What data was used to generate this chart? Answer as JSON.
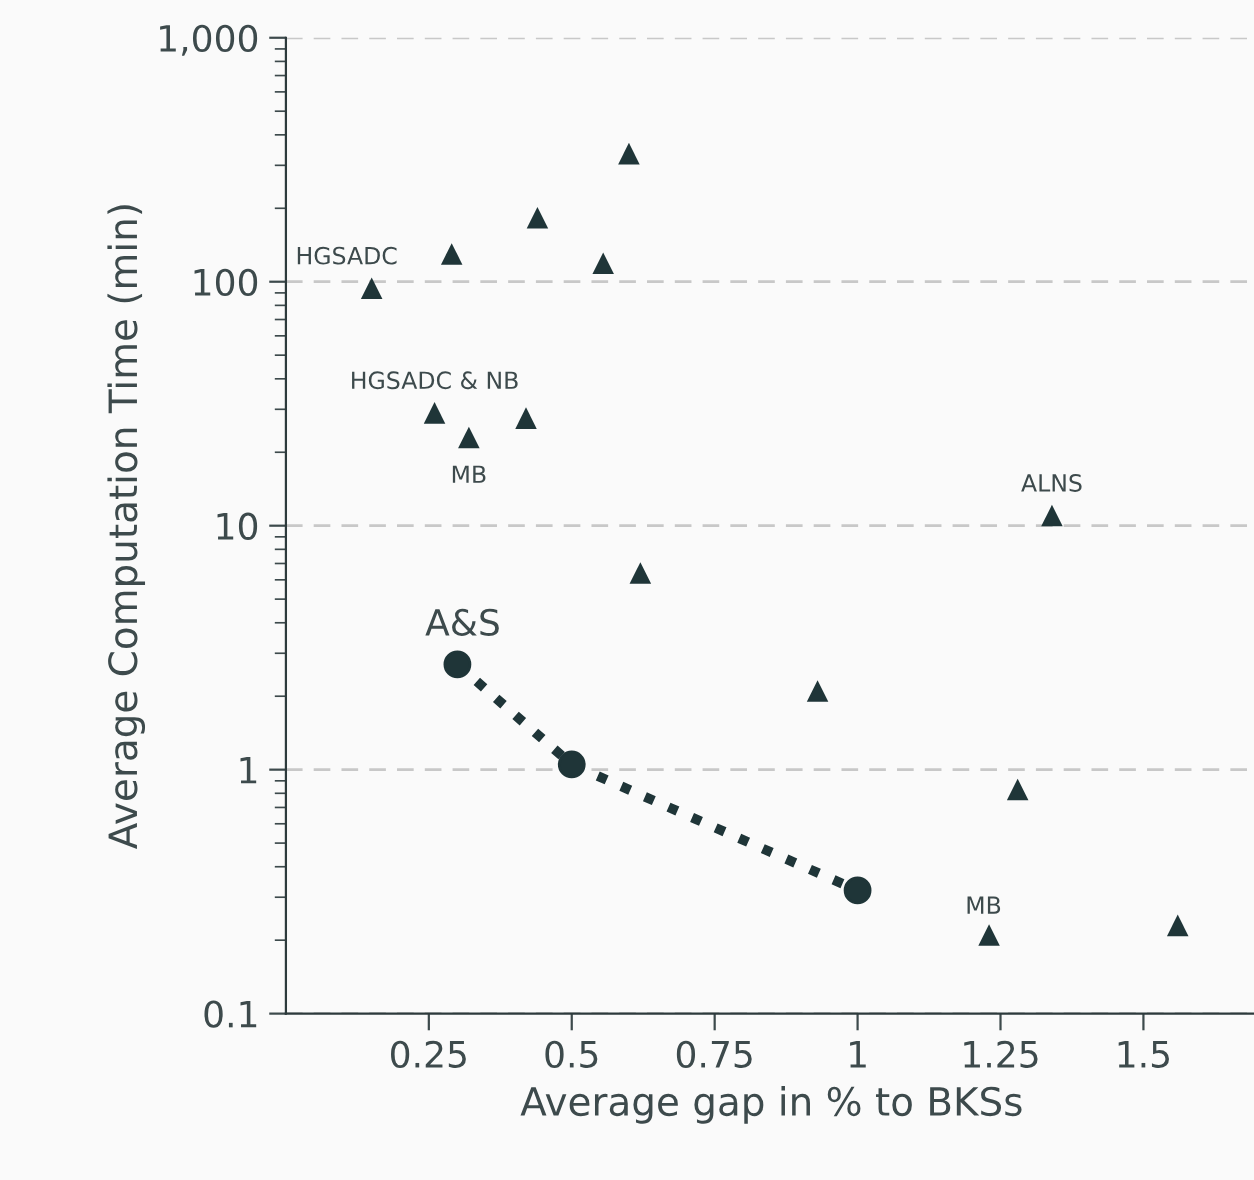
{
  "chart_data": {
    "type": "scatter",
    "xlabel": "Average gap in % to BKSs",
    "ylabel": "Average Computation Time (min)",
    "log": "y",
    "grid": "y",
    "legend": false,
    "xlim": [
      0,
      1.7
    ],
    "xticks": [
      0.25,
      0.5,
      0.75,
      1,
      1.25,
      1.5
    ],
    "ylim": [
      0.1,
      1000
    ],
    "yticks": [
      0.1,
      1,
      10,
      100,
      {
        "value": 1000,
        "label": "1,000"
      }
    ],
    "series": [
      {
        "marker": "triangle",
        "color": "#1f3538",
        "x": [
          0.15,
          0.29,
          0.44,
          0.6,
          0.555,
          0.26,
          0.32,
          0.42,
          0.62,
          0.93,
          1.34,
          1.28,
          1.23,
          1.56
        ],
        "values": [
          94,
          130,
          183,
          335,
          119,
          29,
          23,
          27.6,
          6.4,
          2.1,
          11,
          0.83,
          0.21,
          0.23
        ]
      },
      {
        "type": "line",
        "marker": "circle",
        "line_style": "dotted",
        "color": "#1f3538",
        "x": [
          0.3,
          0.5,
          1.0
        ],
        "values": [
          2.7,
          1.05,
          0.32
        ]
      }
    ],
    "annotations": [
      {
        "text": "HGSADC",
        "x": 0.15,
        "y": 94
      },
      {
        "text": "HGSADC & NB",
        "x": 0.26,
        "y": 29
      },
      {
        "text": "MB",
        "x": 0.32,
        "y": 23
      },
      {
        "text": "ALNS",
        "x": 1.34,
        "y": 11
      },
      {
        "text": "MB",
        "x": 1.23,
        "y": 0.21
      },
      {
        "text": "A&S",
        "x": 0.3,
        "y": 2.7
      }
    ]
  }
}
